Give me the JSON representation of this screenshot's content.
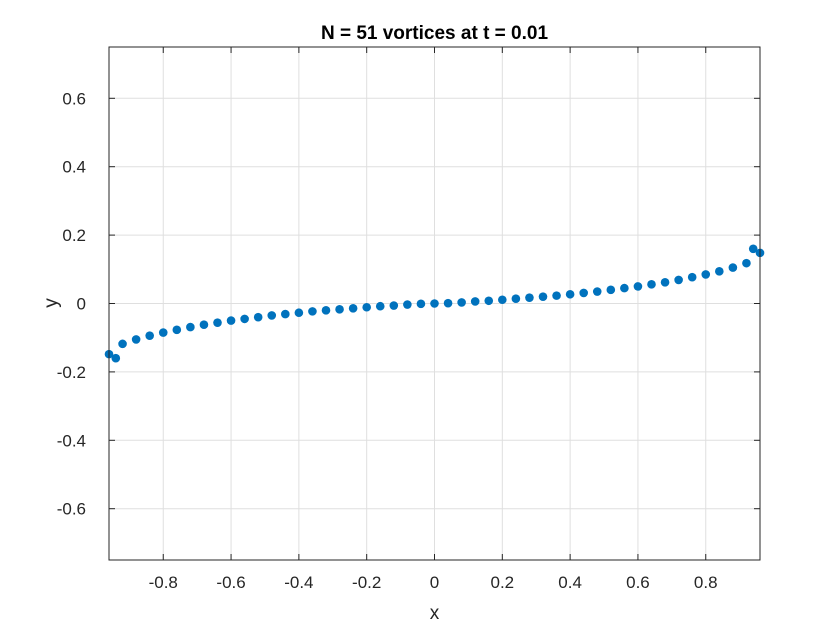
{
  "chart_data": {
    "type": "scatter",
    "title": "N = 51 vortices at t = 0.01",
    "xlabel": "x",
    "ylabel": "y",
    "xlim": [
      -0.96,
      0.96
    ],
    "ylim": [
      -0.75,
      0.75
    ],
    "xticks": [
      -0.8,
      -0.6,
      -0.4,
      -0.2,
      0,
      0.2,
      0.4,
      0.6,
      0.8
    ],
    "yticks": [
      -0.6,
      -0.4,
      -0.2,
      0,
      0.2,
      0.4,
      0.6
    ],
    "xtick_labels": [
      "-0.8",
      "-0.6",
      "-0.4",
      "-0.2",
      "0",
      "0.2",
      "0.4",
      "0.6",
      "0.8"
    ],
    "ytick_labels": [
      "-0.6",
      "-0.4",
      "-0.2",
      "0",
      "0.2",
      "0.4",
      "0.6"
    ],
    "grid": true,
    "marker_color": "#0072BD",
    "series": [
      {
        "x": [
          -0.96,
          -0.94,
          -0.92,
          -0.88,
          -0.84,
          -0.8,
          -0.76,
          -0.72,
          -0.68,
          -0.64,
          -0.6,
          -0.56,
          -0.52,
          -0.48,
          -0.44,
          -0.4,
          -0.36,
          -0.32,
          -0.28,
          -0.24,
          -0.2,
          -0.16,
          -0.12,
          -0.08,
          -0.04,
          0.0,
          0.04,
          0.08,
          0.12,
          0.16,
          0.2,
          0.24,
          0.28,
          0.32,
          0.36,
          0.4,
          0.44,
          0.48,
          0.52,
          0.56,
          0.6,
          0.64,
          0.68,
          0.72,
          0.76,
          0.8,
          0.84,
          0.88,
          0.92,
          0.94,
          0.96
        ],
        "y": [
          -0.148,
          -0.16,
          -0.118,
          -0.105,
          -0.094,
          -0.085,
          -0.077,
          -0.069,
          -0.062,
          -0.056,
          -0.05,
          -0.045,
          -0.04,
          -0.035,
          -0.031,
          -0.027,
          -0.023,
          -0.02,
          -0.017,
          -0.014,
          -0.011,
          -0.008,
          -0.006,
          -0.003,
          -0.001,
          0.0,
          0.001,
          0.003,
          0.006,
          0.008,
          0.011,
          0.014,
          0.017,
          0.02,
          0.023,
          0.027,
          0.031,
          0.035,
          0.04,
          0.045,
          0.05,
          0.056,
          0.062,
          0.069,
          0.077,
          0.085,
          0.094,
          0.105,
          0.118,
          0.16,
          0.148
        ]
      }
    ]
  }
}
